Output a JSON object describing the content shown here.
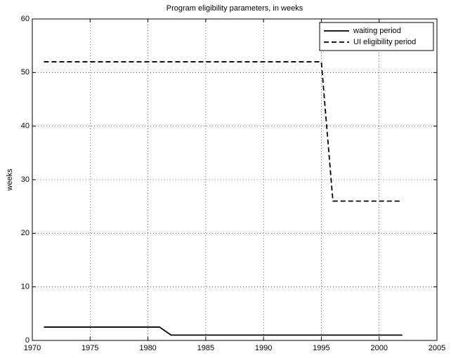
{
  "chart_data": {
    "type": "line",
    "title": "Program eligibility parameters, in weeks",
    "y_label": "weeks",
    "x": [
      1971,
      1981,
      1982,
      1995,
      1996,
      2002
    ],
    "series": [
      {
        "name": "waiting period",
        "color": "#000000",
        "dash": "solid",
        "values": [
          2.5,
          2.5,
          1,
          1,
          1,
          1
        ]
      },
      {
        "name": "UI eligibility period",
        "color": "#000000",
        "dash": "dashed",
        "values": [
          52,
          52,
          52,
          52,
          26,
          26
        ]
      }
    ],
    "xlim": [
      1970,
      2005
    ],
    "xticks": [
      1970,
      1975,
      1980,
      1985,
      1990,
      1995,
      2000,
      2005
    ],
    "ylim": [
      0,
      60
    ],
    "yticks": [
      0,
      10,
      20,
      30,
      40,
      50,
      60
    ],
    "grid": true,
    "legend": "upper right"
  }
}
